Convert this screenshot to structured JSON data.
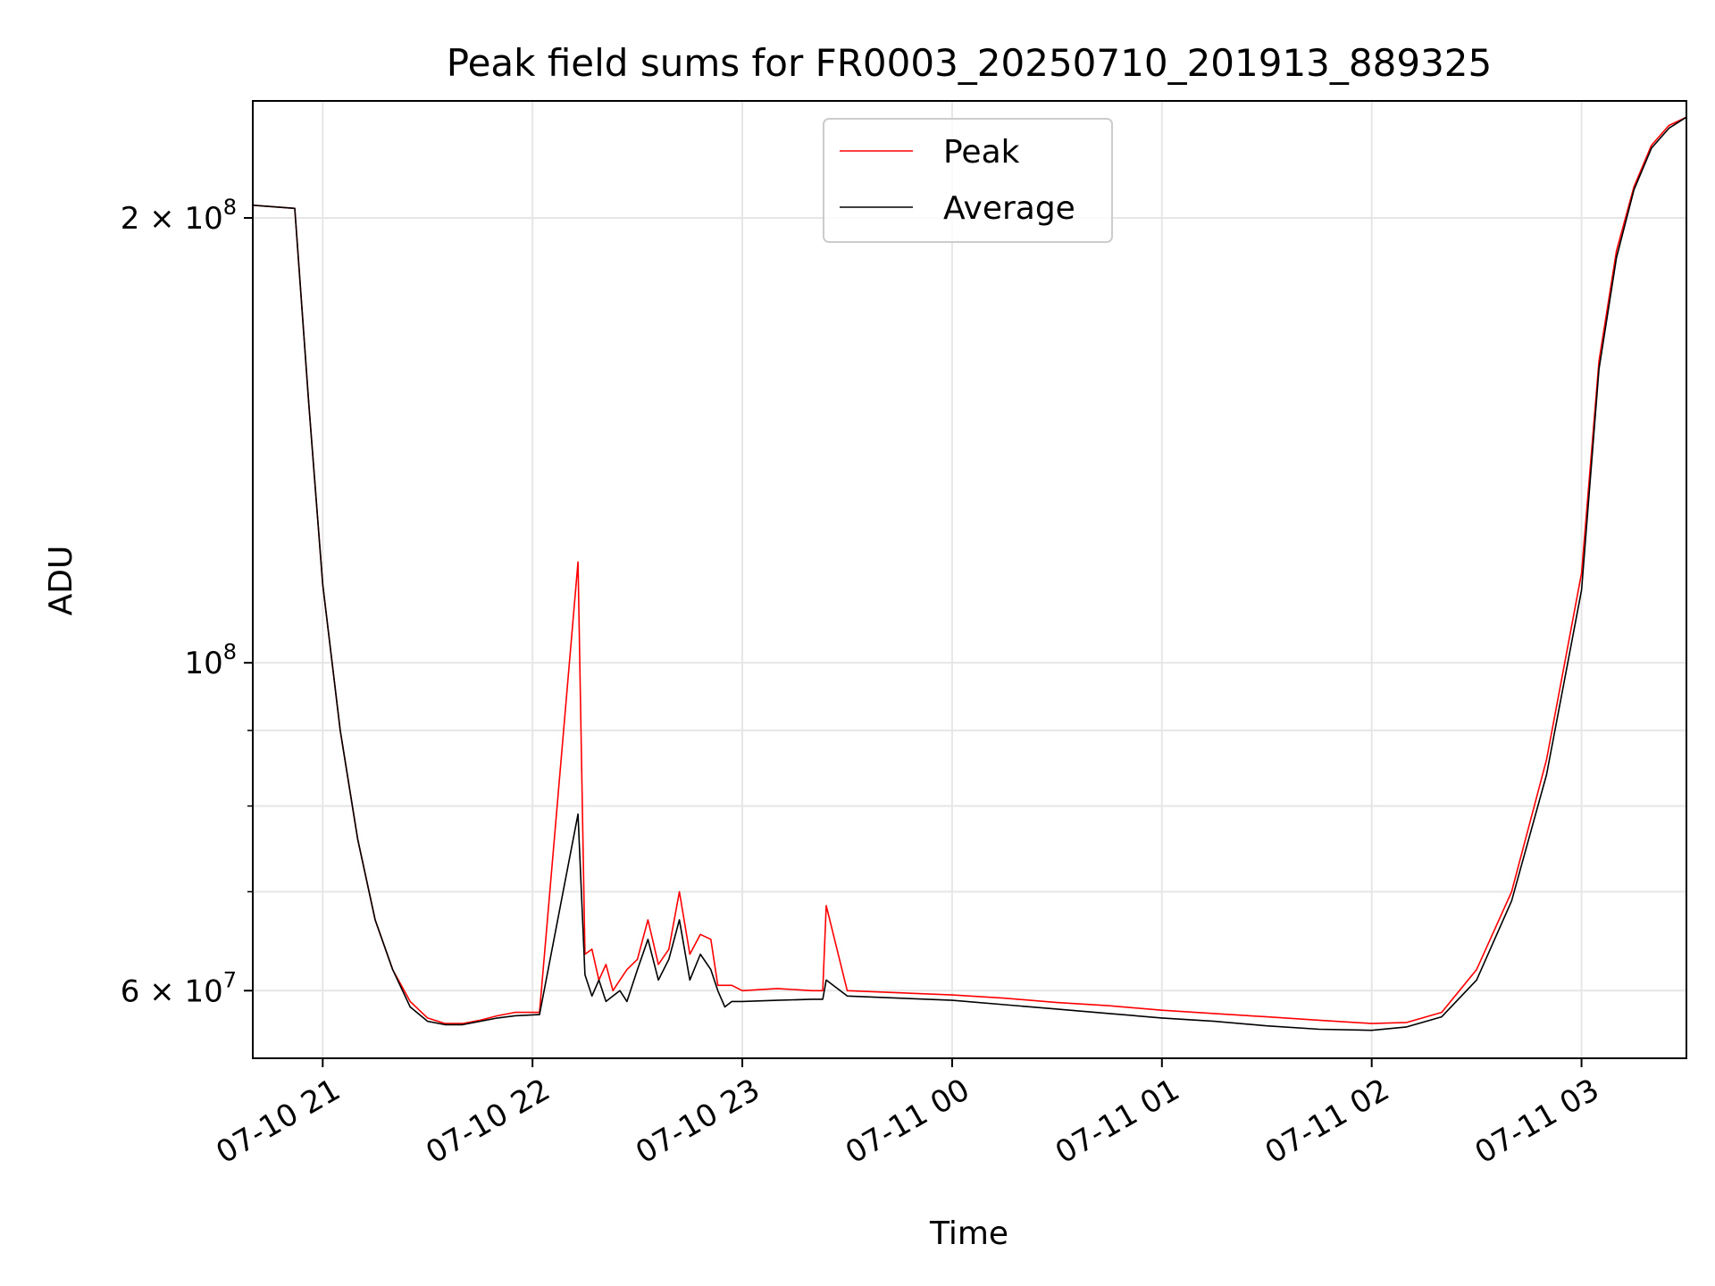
{
  "chart_data": {
    "type": "line",
    "title": "Peak field sums for FR0003_20250710_201913_889325",
    "xlabel": "Time",
    "ylabel": "ADU",
    "x_scale": "time",
    "y_scale": "log",
    "xlim": [
      "2025-07-10 20:40",
      "2025-07-11 03:30"
    ],
    "ylim": [
      54000000,
      240000000
    ],
    "x_ticks": [
      {
        "value": "2025-07-10 21:00",
        "label": "07-10 21"
      },
      {
        "value": "2025-07-10 22:00",
        "label": "07-10 22"
      },
      {
        "value": "2025-07-10 23:00",
        "label": "07-10 23"
      },
      {
        "value": "2025-07-11 00:00",
        "label": "07-11 00"
      },
      {
        "value": "2025-07-11 01:00",
        "label": "07-11 01"
      },
      {
        "value": "2025-07-11 02:00",
        "label": "07-11 02"
      },
      {
        "value": "2025-07-11 03:00",
        "label": "07-11 03"
      }
    ],
    "y_ticks": [
      {
        "value": 200000000,
        "mantissa": "2",
        "exponent": "8"
      },
      {
        "value": 100000000,
        "mantissa": "",
        "exponent": "8"
      },
      {
        "value": 60000000,
        "mantissa": "6",
        "exponent": "7"
      }
    ],
    "y_minor_ticks": [
      70000000,
      80000000,
      90000000
    ],
    "grid": true,
    "legend": {
      "location": "upper center"
    },
    "series": [
      {
        "name": "Peak",
        "color": "#ff0000",
        "x": [
          "2025-07-10 20:40",
          "2025-07-10 20:46",
          "2025-07-10 20:52",
          "2025-07-10 20:56",
          "2025-07-10 21:00",
          "2025-07-10 21:05",
          "2025-07-10 21:10",
          "2025-07-10 21:15",
          "2025-07-10 21:20",
          "2025-07-10 21:25",
          "2025-07-10 21:30",
          "2025-07-10 21:35",
          "2025-07-10 21:40",
          "2025-07-10 21:45",
          "2025-07-10 21:50",
          "2025-07-10 21:55",
          "2025-07-10 22:02",
          "2025-07-10 22:13",
          "2025-07-10 22:15",
          "2025-07-10 22:17",
          "2025-07-10 22:19",
          "2025-07-10 22:21",
          "2025-07-10 22:23",
          "2025-07-10 22:25",
          "2025-07-10 22:27",
          "2025-07-10 22:30",
          "2025-07-10 22:33",
          "2025-07-10 22:36",
          "2025-07-10 22:39",
          "2025-07-10 22:42",
          "2025-07-10 22:45",
          "2025-07-10 22:48",
          "2025-07-10 22:51",
          "2025-07-10 22:53",
          "2025-07-10 22:55",
          "2025-07-10 22:57",
          "2025-07-10 23:00",
          "2025-07-10 23:10",
          "2025-07-10 23:20",
          "2025-07-10 23:23",
          "2025-07-10 23:24",
          "2025-07-10 23:30",
          "2025-07-10 23:45",
          "2025-07-11 00:00",
          "2025-07-11 00:15",
          "2025-07-11 00:30",
          "2025-07-11 00:45",
          "2025-07-11 01:00",
          "2025-07-11 01:15",
          "2025-07-11 01:30",
          "2025-07-11 01:45",
          "2025-07-11 02:00",
          "2025-07-11 02:10",
          "2025-07-11 02:20",
          "2025-07-11 02:30",
          "2025-07-11 02:40",
          "2025-07-11 02:50",
          "2025-07-11 03:00",
          "2025-07-11 03:05",
          "2025-07-11 03:10",
          "2025-07-11 03:15",
          "2025-07-11 03:20",
          "2025-07-11 03:25",
          "2025-07-11 03:30"
        ],
        "y": [
          204000000,
          203500000,
          203000000,
          150000000,
          113000000,
          90000000,
          76000000,
          67000000,
          62000000,
          59000000,
          57500000,
          57000000,
          57000000,
          57300000,
          57700000,
          58000000,
          58000000,
          117000000,
          63500000,
          64000000,
          61000000,
          62500000,
          60000000,
          61000000,
          62000000,
          63000000,
          67000000,
          62500000,
          64000000,
          70000000,
          63500000,
          65500000,
          65000000,
          60500000,
          60500000,
          60500000,
          60000000,
          60200000,
          60000000,
          60000000,
          68500000,
          60000000,
          59800000,
          59600000,
          59300000,
          58900000,
          58600000,
          58200000,
          57900000,
          57600000,
          57300000,
          57000000,
          57100000,
          58000000,
          62000000,
          70000000,
          86000000,
          115000000,
          160000000,
          190000000,
          210000000,
          224000000,
          231000000,
          234000000
        ]
      },
      {
        "name": "Average",
        "color": "#000000",
        "x": [
          "2025-07-10 20:40",
          "2025-07-10 20:46",
          "2025-07-10 20:52",
          "2025-07-10 20:56",
          "2025-07-10 21:00",
          "2025-07-10 21:05",
          "2025-07-10 21:10",
          "2025-07-10 21:15",
          "2025-07-10 21:20",
          "2025-07-10 21:25",
          "2025-07-10 21:30",
          "2025-07-10 21:35",
          "2025-07-10 21:40",
          "2025-07-10 21:45",
          "2025-07-10 21:50",
          "2025-07-10 21:55",
          "2025-07-10 22:02",
          "2025-07-10 22:13",
          "2025-07-10 22:15",
          "2025-07-10 22:17",
          "2025-07-10 22:19",
          "2025-07-10 22:21",
          "2025-07-10 22:23",
          "2025-07-10 22:25",
          "2025-07-10 22:27",
          "2025-07-10 22:30",
          "2025-07-10 22:33",
          "2025-07-10 22:36",
          "2025-07-10 22:39",
          "2025-07-10 22:42",
          "2025-07-10 22:45",
          "2025-07-10 22:48",
          "2025-07-10 22:51",
          "2025-07-10 22:53",
          "2025-07-10 22:55",
          "2025-07-10 22:57",
          "2025-07-10 23:00",
          "2025-07-10 23:10",
          "2025-07-10 23:20",
          "2025-07-10 23:23",
          "2025-07-10 23:24",
          "2025-07-10 23:30",
          "2025-07-10 23:45",
          "2025-07-11 00:00",
          "2025-07-11 00:15",
          "2025-07-11 00:30",
          "2025-07-11 00:45",
          "2025-07-11 01:00",
          "2025-07-11 01:15",
          "2025-07-11 01:30",
          "2025-07-11 01:45",
          "2025-07-11 02:00",
          "2025-07-11 02:10",
          "2025-07-11 02:20",
          "2025-07-11 02:30",
          "2025-07-11 02:40",
          "2025-07-11 02:50",
          "2025-07-11 03:00",
          "2025-07-11 03:05",
          "2025-07-11 03:10",
          "2025-07-11 03:15",
          "2025-07-11 03:20",
          "2025-07-11 03:25",
          "2025-07-11 03:30"
        ],
        "y": [
          204000000,
          203500000,
          203000000,
          150000000,
          113000000,
          90000000,
          76000000,
          67000000,
          62000000,
          58500000,
          57200000,
          56900000,
          56900000,
          57200000,
          57500000,
          57700000,
          57800000,
          79000000,
          61500000,
          59500000,
          61000000,
          59000000,
          59500000,
          60000000,
          59000000,
          62000000,
          65000000,
          61000000,
          63000000,
          67000000,
          61000000,
          63500000,
          62000000,
          60000000,
          58500000,
          59000000,
          59000000,
          59100000,
          59200000,
          59200000,
          61000000,
          59500000,
          59300000,
          59100000,
          58700000,
          58300000,
          57900000,
          57500000,
          57200000,
          56800000,
          56500000,
          56400000,
          56700000,
          57600000,
          61000000,
          69000000,
          84000000,
          112000000,
          158000000,
          188000000,
          209000000,
          223000000,
          230000000,
          234000000
        ]
      }
    ]
  }
}
